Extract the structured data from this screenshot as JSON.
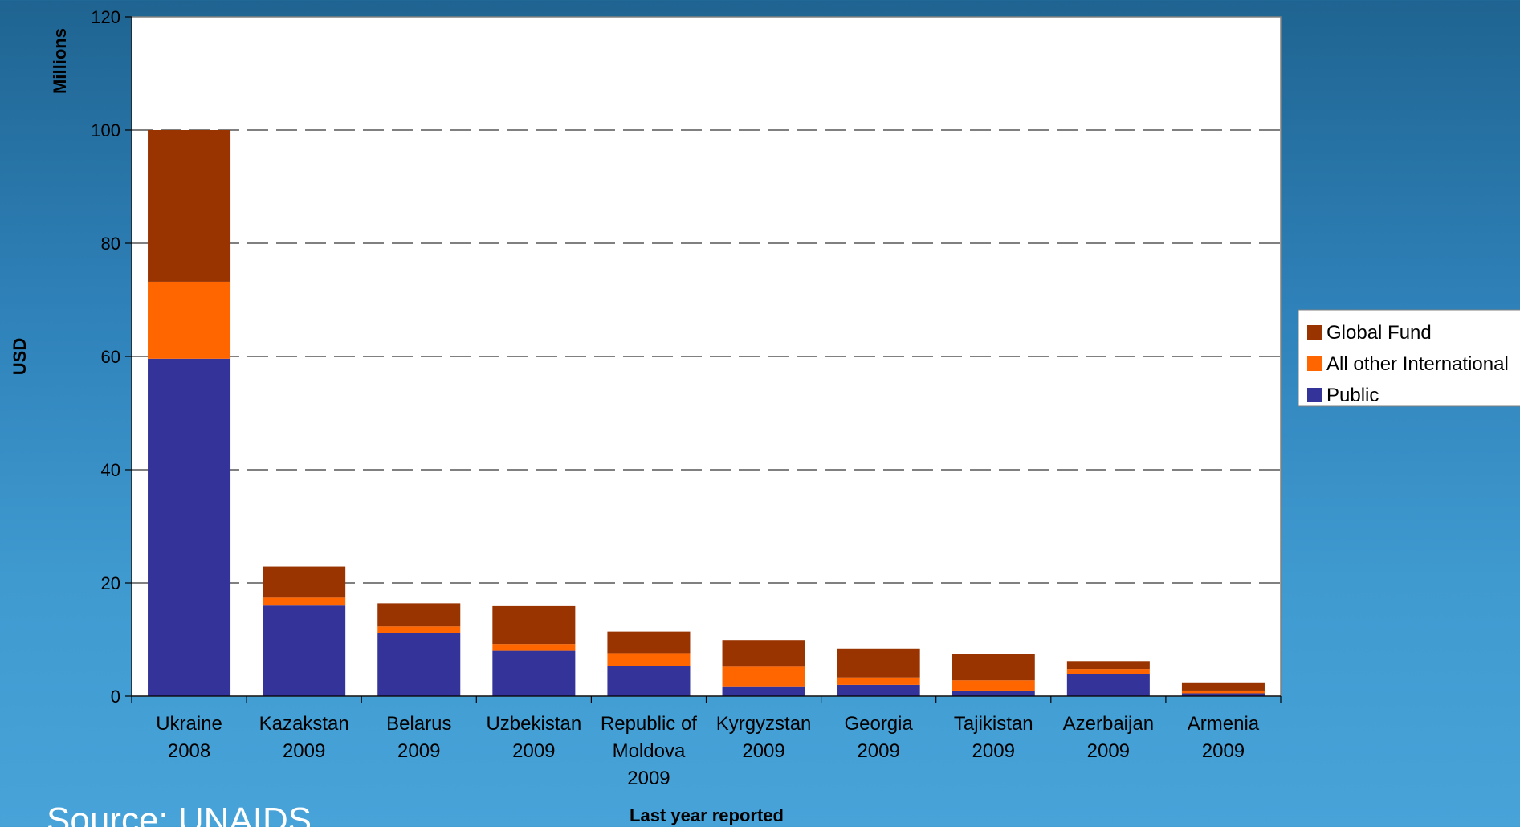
{
  "source": "Source: UNAIDS",
  "chart_data": {
    "type": "bar",
    "stacked": true,
    "title": "",
    "xlabel": "Last year reported",
    "ylabel": "USD",
    "yunit": "Millions",
    "ylim": [
      0,
      120
    ],
    "yticks": [
      0,
      20,
      40,
      60,
      80,
      100,
      120
    ],
    "grid": "horizontal-dashed",
    "legend_placement": "right",
    "categories": [
      [
        "Ukraine",
        "2008"
      ],
      [
        "Kazakstan",
        "2009"
      ],
      [
        "Belarus",
        "2009"
      ],
      [
        "Uzbekistan",
        "2009"
      ],
      [
        "Republic of",
        "Moldova",
        "2009"
      ],
      [
        "Kyrgyzstan",
        "2009"
      ],
      [
        "Georgia",
        "2009"
      ],
      [
        "Tajikistan",
        "2009"
      ],
      [
        "Azerbaijan",
        "2009"
      ],
      [
        "Armenia",
        "2009"
      ]
    ],
    "series": [
      {
        "name": "Public",
        "color": "#333399",
        "values": [
          59.6,
          16.0,
          11.1,
          8.0,
          5.3,
          1.6,
          2.0,
          1.0,
          3.9,
          0.5
        ]
      },
      {
        "name": "All other International",
        "color": "#ff6600",
        "values": [
          13.6,
          1.4,
          1.2,
          1.2,
          2.3,
          3.6,
          1.3,
          1.8,
          0.9,
          0.5
        ]
      },
      {
        "name": "Global Fund",
        "color": "#993300",
        "values": [
          26.8,
          5.5,
          4.1,
          6.7,
          3.8,
          4.7,
          5.1,
          4.6,
          1.4,
          1.3
        ]
      }
    ],
    "legend_order": [
      "Global Fund",
      "All other International",
      "Public"
    ]
  }
}
